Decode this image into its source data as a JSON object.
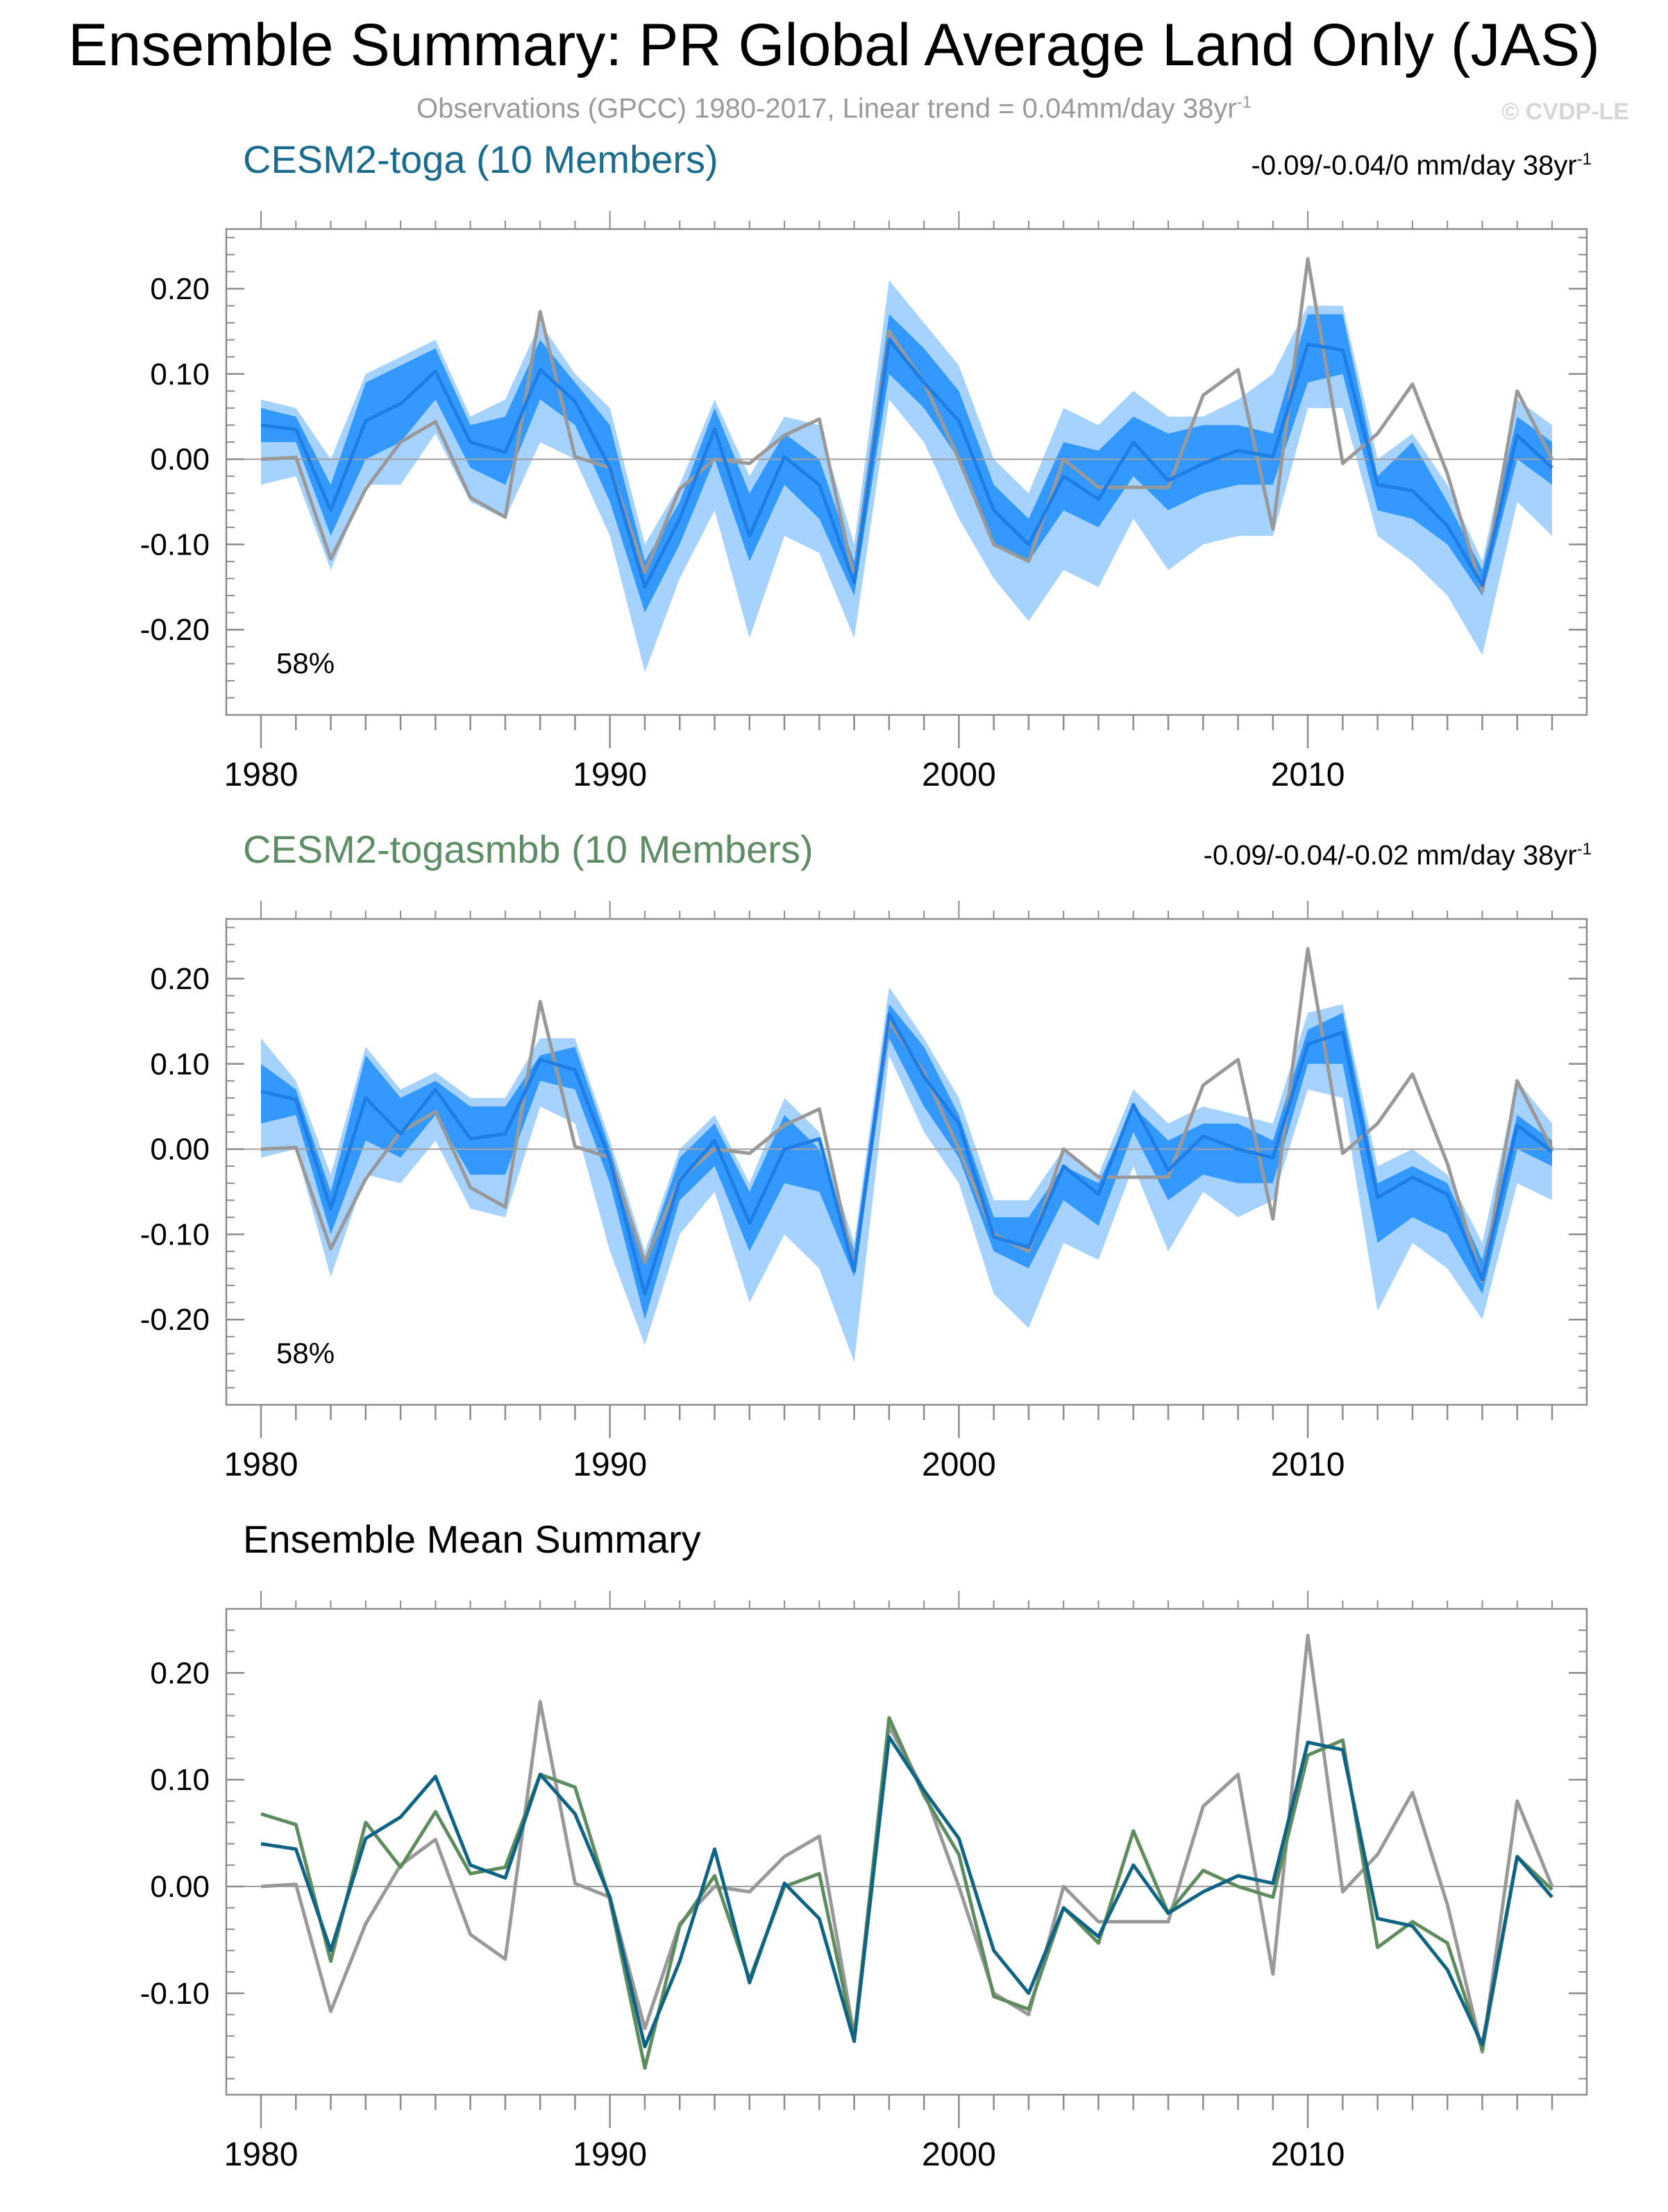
{
  "header": {
    "title": "Ensemble Summary: PR Global Average Land Only (JAS)",
    "subtitle_text": "Observations (GPCC) 1980-2017, Linear trend = 0.04mm/day 38yr",
    "subtitle_sup": "-1",
    "copyright": "© CVDP-LE"
  },
  "panels": [
    {
      "title": "CESM2-toga (10 Members)",
      "trend_text": "-0.09/-0.04/0 mm/day 38yr",
      "trend_sup": "-1",
      "pct": "58%"
    },
    {
      "title": "CESM2-togasmbb (10 Members)",
      "trend_text": "-0.09/-0.04/-0.02 mm/day 38yr",
      "trend_sup": "-1",
      "pct": "58%"
    },
    {
      "title": "Ensemble Mean Summary"
    }
  ],
  "colors": {
    "toga_title": "#1a6c8f",
    "togasmbb_title": "#5e8c64",
    "toga_mean": "#0f6385",
    "togasmbb_mean": "#5e8c5e",
    "obs": "#999999",
    "inner_band": "#3399ff",
    "outer_band": "#a6d2ff",
    "band_mean": "#1f7ee6"
  },
  "chart_data": [
    {
      "type": "area",
      "title": "CESM2-toga (10 Members)",
      "x": [
        1980,
        1981,
        1982,
        1983,
        1984,
        1985,
        1986,
        1987,
        1988,
        1989,
        1990,
        1991,
        1992,
        1993,
        1994,
        1995,
        1996,
        1997,
        1998,
        1999,
        2000,
        2001,
        2002,
        2003,
        2004,
        2005,
        2006,
        2007,
        2008,
        2009,
        2010,
        2011,
        2012,
        2013,
        2014,
        2015,
        2016,
        2017
      ],
      "xticks": [
        "1980",
        "1990",
        "2000",
        "2010"
      ],
      "yticks": [
        "0.20",
        "0.10",
        "0.00",
        "-0.10",
        "-0.20"
      ],
      "ylim": [
        -0.3,
        0.27
      ],
      "series": [
        {
          "name": "outer_max",
          "values": [
            0.07,
            0.06,
            0.0,
            0.1,
            0.12,
            0.14,
            0.05,
            0.07,
            0.16,
            0.1,
            0.06,
            -0.1,
            -0.03,
            0.07,
            -0.02,
            0.05,
            0.04,
            -0.1,
            0.21,
            0.16,
            0.11,
            0.0,
            -0.04,
            0.06,
            0.04,
            0.08,
            0.05,
            0.05,
            0.07,
            0.1,
            0.18,
            0.18,
            0.0,
            0.03,
            -0.03,
            -0.12,
            0.07,
            0.04
          ]
        },
        {
          "name": "inner_max",
          "values": [
            0.06,
            0.05,
            -0.03,
            0.09,
            0.11,
            0.13,
            0.04,
            0.05,
            0.14,
            0.09,
            0.04,
            -0.12,
            -0.05,
            0.06,
            -0.04,
            0.03,
            0.0,
            -0.12,
            0.17,
            0.13,
            0.08,
            -0.03,
            -0.07,
            0.02,
            0.01,
            0.05,
            0.03,
            0.04,
            0.04,
            0.03,
            0.17,
            0.17,
            -0.02,
            0.02,
            -0.05,
            -0.13,
            0.05,
            0.02
          ]
        },
        {
          "name": "mean",
          "values": [
            0.04,
            0.035,
            -0.06,
            0.045,
            0.065,
            0.103,
            0.02,
            0.008,
            0.105,
            0.068,
            -0.01,
            -0.15,
            -0.07,
            0.035,
            -0.09,
            0.003,
            -0.03,
            -0.145,
            0.14,
            0.09,
            0.045,
            -0.06,
            -0.1,
            -0.02,
            -0.047,
            0.02,
            -0.025,
            -0.005,
            0.01,
            0.003,
            0.135,
            0.128,
            -0.03,
            -0.037,
            -0.078,
            -0.148,
            0.028,
            -0.01
          ]
        },
        {
          "name": "inner_min",
          "values": [
            0.02,
            0.02,
            -0.09,
            0.0,
            0.02,
            0.07,
            -0.01,
            -0.03,
            0.07,
            0.04,
            -0.05,
            -0.18,
            -0.1,
            0.0,
            -0.12,
            -0.03,
            -0.07,
            -0.16,
            0.1,
            0.06,
            0.0,
            -0.1,
            -0.12,
            -0.06,
            -0.08,
            -0.02,
            -0.06,
            -0.04,
            -0.03,
            -0.03,
            0.09,
            0.1,
            -0.06,
            -0.07,
            -0.1,
            -0.16,
            0.0,
            -0.03
          ]
        },
        {
          "name": "outer_min",
          "values": [
            -0.03,
            -0.02,
            -0.13,
            -0.03,
            -0.03,
            0.03,
            -0.05,
            -0.07,
            0.02,
            0.0,
            -0.09,
            -0.25,
            -0.14,
            -0.06,
            -0.21,
            -0.09,
            -0.11,
            -0.21,
            0.07,
            0.02,
            -0.07,
            -0.14,
            -0.19,
            -0.13,
            -0.15,
            -0.07,
            -0.13,
            -0.1,
            -0.09,
            -0.09,
            0.06,
            0.06,
            -0.09,
            -0.12,
            -0.16,
            -0.23,
            -0.05,
            -0.09
          ]
        },
        {
          "name": "Observations (GPCC)",
          "values": [
            0.0,
            0.002,
            -0.117,
            -0.035,
            0.02,
            0.044,
            -0.045,
            -0.068,
            0.173,
            0.003,
            -0.01,
            -0.133,
            -0.035,
            0.0,
            -0.005,
            0.028,
            0.047,
            -0.14,
            0.15,
            0.09,
            0.0,
            -0.1,
            -0.12,
            0.0,
            -0.033,
            -0.033,
            -0.033,
            0.075,
            0.105,
            -0.082,
            0.235,
            -0.005,
            0.03,
            0.088,
            -0.017,
            -0.155,
            0.08,
            0.0
          ]
        }
      ]
    },
    {
      "type": "area",
      "title": "CESM2-togasmbb (10 Members)",
      "x": [
        1980,
        1981,
        1982,
        1983,
        1984,
        1985,
        1986,
        1987,
        1988,
        1989,
        1990,
        1991,
        1992,
        1993,
        1994,
        1995,
        1996,
        1997,
        1998,
        1999,
        2000,
        2001,
        2002,
        2003,
        2004,
        2005,
        2006,
        2007,
        2008,
        2009,
        2010,
        2011,
        2012,
        2013,
        2014,
        2015,
        2016,
        2017
      ],
      "xticks": [
        "1980",
        "1990",
        "2000",
        "2010"
      ],
      "yticks": [
        "0.20",
        "0.10",
        "0.00",
        "-0.10",
        "-0.20"
      ],
      "ylim": [
        -0.3,
        0.27
      ],
      "series": [
        {
          "name": "outer_max",
          "values": [
            0.13,
            0.08,
            -0.03,
            0.12,
            0.07,
            0.09,
            0.06,
            0.06,
            0.13,
            0.13,
            0.01,
            -0.12,
            0.0,
            0.04,
            -0.04,
            0.06,
            0.02,
            -0.11,
            0.19,
            0.13,
            0.06,
            -0.06,
            -0.06,
            0.0,
            -0.03,
            0.07,
            0.03,
            0.05,
            0.04,
            0.03,
            0.16,
            0.17,
            -0.02,
            0.0,
            -0.03,
            -0.11,
            0.08,
            0.03
          ]
        },
        {
          "name": "inner_max",
          "values": [
            0.1,
            0.07,
            -0.05,
            0.11,
            0.06,
            0.08,
            0.05,
            0.05,
            0.11,
            0.12,
            0.0,
            -0.13,
            -0.01,
            0.03,
            -0.05,
            0.04,
            0.0,
            -0.12,
            0.17,
            0.12,
            0.04,
            -0.08,
            -0.08,
            -0.02,
            -0.04,
            0.05,
            0.01,
            0.03,
            0.03,
            0.01,
            0.14,
            0.16,
            -0.04,
            -0.02,
            -0.04,
            -0.13,
            0.04,
            0.01
          ]
        },
        {
          "name": "mean",
          "values": [
            0.068,
            0.058,
            -0.07,
            0.06,
            0.018,
            0.07,
            0.012,
            0.018,
            0.105,
            0.093,
            -0.013,
            -0.17,
            -0.037,
            0.01,
            -0.087,
            0.0,
            0.012,
            -0.143,
            0.158,
            0.085,
            0.03,
            -0.103,
            -0.115,
            -0.02,
            -0.053,
            0.052,
            -0.025,
            0.015,
            0.0,
            -0.01,
            0.123,
            0.137,
            -0.057,
            -0.033,
            -0.053,
            -0.153,
            0.028,
            -0.003
          ]
        },
        {
          "name": "inner_min",
          "values": [
            0.03,
            0.04,
            -0.1,
            0.01,
            -0.01,
            0.04,
            -0.03,
            -0.03,
            0.08,
            0.07,
            -0.04,
            -0.2,
            -0.06,
            -0.02,
            -0.12,
            -0.04,
            -0.05,
            -0.15,
            0.13,
            0.05,
            -0.01,
            -0.12,
            -0.14,
            -0.06,
            -0.09,
            0.02,
            -0.06,
            -0.03,
            -0.04,
            -0.04,
            0.1,
            0.1,
            -0.11,
            -0.08,
            -0.1,
            -0.17,
            0.0,
            -0.02
          ]
        },
        {
          "name": "outer_min",
          "values": [
            -0.01,
            0.0,
            -0.15,
            -0.03,
            -0.04,
            0.01,
            -0.07,
            -0.08,
            0.05,
            0.03,
            -0.12,
            -0.23,
            -0.1,
            -0.05,
            -0.18,
            -0.1,
            -0.14,
            -0.25,
            0.11,
            0.02,
            -0.04,
            -0.17,
            -0.21,
            -0.11,
            -0.13,
            -0.02,
            -0.12,
            -0.05,
            -0.08,
            -0.06,
            0.07,
            0.06,
            -0.19,
            -0.11,
            -0.14,
            -0.2,
            -0.04,
            -0.06
          ]
        },
        {
          "name": "Observations (GPCC)",
          "values": [
            0.0,
            0.002,
            -0.117,
            -0.035,
            0.02,
            0.044,
            -0.045,
            -0.068,
            0.173,
            0.003,
            -0.01,
            -0.133,
            -0.035,
            0.0,
            -0.005,
            0.028,
            0.047,
            -0.14,
            0.15,
            0.09,
            0.0,
            -0.1,
            -0.12,
            0.0,
            -0.033,
            -0.033,
            -0.033,
            0.075,
            0.105,
            -0.082,
            0.235,
            -0.005,
            0.03,
            0.088,
            -0.017,
            -0.155,
            0.08,
            0.0
          ]
        }
      ]
    },
    {
      "type": "line",
      "title": "Ensemble Mean Summary",
      "x": [
        1980,
        1981,
        1982,
        1983,
        1984,
        1985,
        1986,
        1987,
        1988,
        1989,
        1990,
        1991,
        1992,
        1993,
        1994,
        1995,
        1996,
        1997,
        1998,
        1999,
        2000,
        2001,
        2002,
        2003,
        2004,
        2005,
        2006,
        2007,
        2008,
        2009,
        2010,
        2011,
        2012,
        2013,
        2014,
        2015,
        2016,
        2017
      ],
      "xticks": [
        "1980",
        "1990",
        "2000",
        "2010"
      ],
      "yticks": [
        "0.20",
        "0.10",
        "0.00",
        "-0.10"
      ],
      "ylim": [
        -0.195,
        0.26
      ],
      "series": [
        {
          "name": "Observations (GPCC)",
          "values": [
            0.0,
            0.002,
            -0.117,
            -0.035,
            0.02,
            0.044,
            -0.045,
            -0.068,
            0.173,
            0.003,
            -0.01,
            -0.133,
            -0.035,
            0.0,
            -0.005,
            0.028,
            0.047,
            -0.14,
            0.15,
            0.09,
            0.0,
            -0.1,
            -0.12,
            0.0,
            -0.033,
            -0.033,
            -0.033,
            0.075,
            0.105,
            -0.082,
            0.235,
            -0.005,
            0.03,
            0.088,
            -0.017,
            -0.155,
            0.08,
            0.0
          ]
        },
        {
          "name": "CESM2-togasmbb",
          "values": [
            0.068,
            0.058,
            -0.07,
            0.06,
            0.018,
            0.07,
            0.012,
            0.018,
            0.105,
            0.093,
            -0.013,
            -0.17,
            -0.037,
            0.01,
            -0.087,
            0.0,
            0.012,
            -0.143,
            0.158,
            0.085,
            0.03,
            -0.103,
            -0.115,
            -0.02,
            -0.053,
            0.052,
            -0.025,
            0.015,
            0.0,
            -0.01,
            0.123,
            0.137,
            -0.057,
            -0.033,
            -0.053,
            -0.153,
            0.028,
            -0.003
          ]
        },
        {
          "name": "CESM2-toga",
          "values": [
            0.04,
            0.035,
            -0.06,
            0.045,
            0.065,
            0.103,
            0.02,
            0.008,
            0.105,
            0.068,
            -0.01,
            -0.15,
            -0.07,
            0.035,
            -0.09,
            0.003,
            -0.03,
            -0.145,
            0.14,
            0.09,
            0.045,
            -0.06,
            -0.1,
            -0.02,
            -0.047,
            0.02,
            -0.025,
            -0.005,
            0.01,
            0.003,
            0.135,
            0.128,
            -0.03,
            -0.037,
            -0.078,
            -0.148,
            0.028,
            -0.01
          ]
        }
      ]
    }
  ]
}
